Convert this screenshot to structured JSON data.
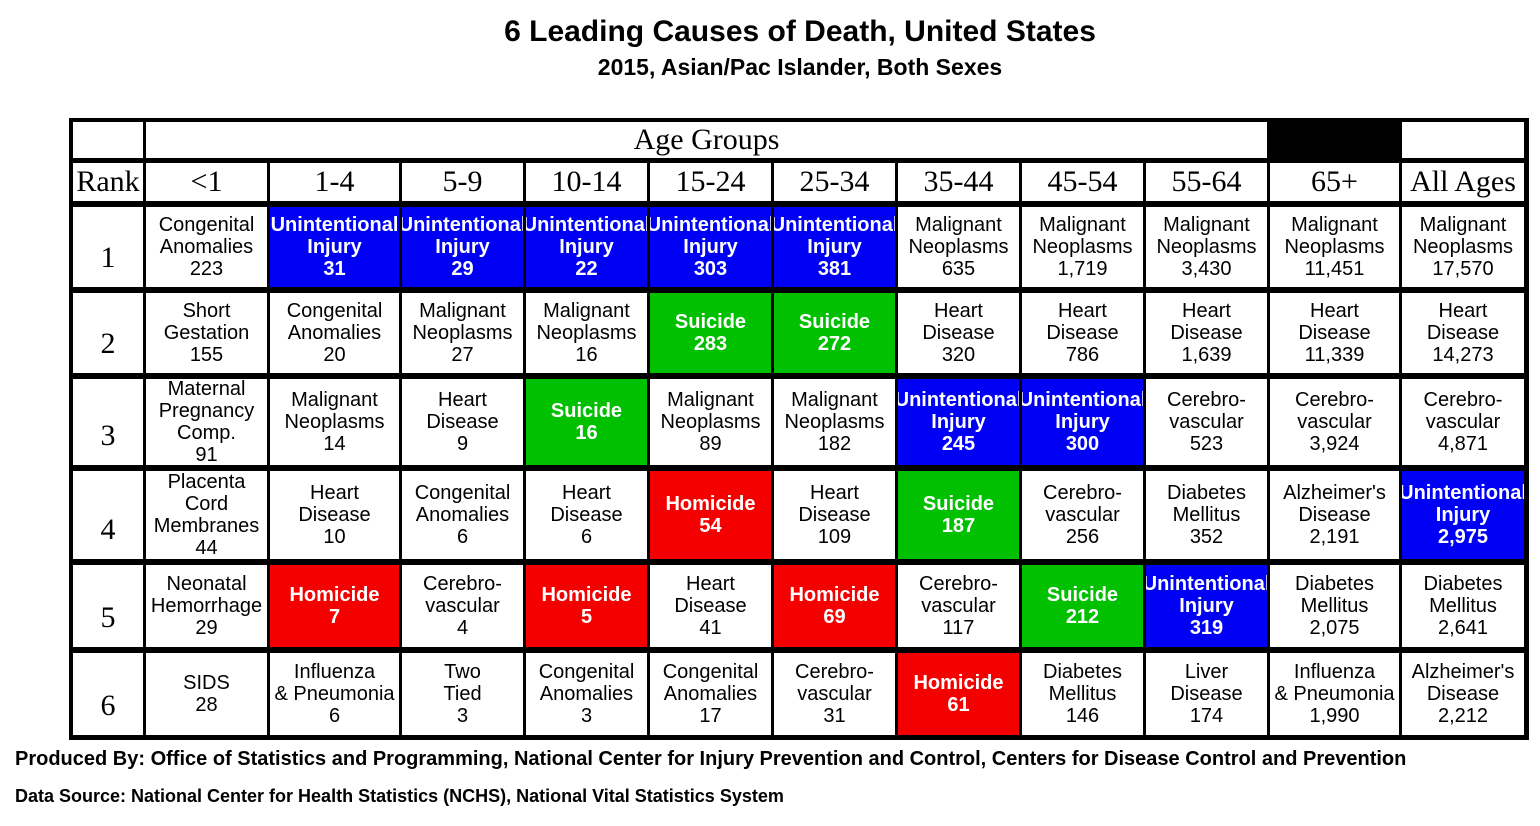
{
  "colors": {
    "unintentional_injury": "#0000f5",
    "suicide": "#00c000",
    "homicide": "#f50000",
    "default": "#ffffff"
  },
  "chart_data": {
    "type": "table",
    "title": "6 Leading Causes of Death, United States",
    "subtitle": "2015, Asian/Pac Islander, Both Sexes",
    "group_header": "Age Groups",
    "rank_header": "Rank",
    "age_groups": [
      "<1",
      "1-4",
      "5-9",
      "10-14",
      "15-24",
      "25-34",
      "35-44",
      "45-54",
      "55-64",
      "65+",
      "All Ages"
    ],
    "ranks": [
      "1",
      "2",
      "3",
      "4",
      "5",
      "6"
    ],
    "rows": [
      [
        {
          "cause": [
            "Congenital",
            "Anomalies"
          ],
          "count": "223",
          "color": "default"
        },
        {
          "cause": [
            "Unintentional",
            "Injury"
          ],
          "count": "31",
          "color": "unintentional_injury"
        },
        {
          "cause": [
            "Unintentional",
            "Injury"
          ],
          "count": "29",
          "color": "unintentional_injury"
        },
        {
          "cause": [
            "Unintentional",
            "Injury"
          ],
          "count": "22",
          "color": "unintentional_injury"
        },
        {
          "cause": [
            "Unintentional",
            "Injury"
          ],
          "count": "303",
          "color": "unintentional_injury"
        },
        {
          "cause": [
            "Unintentional",
            "Injury"
          ],
          "count": "381",
          "color": "unintentional_injury"
        },
        {
          "cause": [
            "Malignant",
            "Neoplasms"
          ],
          "count": "635",
          "color": "default"
        },
        {
          "cause": [
            "Malignant",
            "Neoplasms"
          ],
          "count": "1,719",
          "color": "default"
        },
        {
          "cause": [
            "Malignant",
            "Neoplasms"
          ],
          "count": "3,430",
          "color": "default"
        },
        {
          "cause": [
            "Malignant",
            "Neoplasms"
          ],
          "count": "11,451",
          "color": "default"
        },
        {
          "cause": [
            "Malignant",
            "Neoplasms"
          ],
          "count": "17,570",
          "color": "default"
        }
      ],
      [
        {
          "cause": [
            "Short",
            "Gestation"
          ],
          "count": "155",
          "color": "default"
        },
        {
          "cause": [
            "Congenital",
            "Anomalies"
          ],
          "count": "20",
          "color": "default"
        },
        {
          "cause": [
            "Malignant",
            "Neoplasms"
          ],
          "count": "27",
          "color": "default"
        },
        {
          "cause": [
            "Malignant",
            "Neoplasms"
          ],
          "count": "16",
          "color": "default"
        },
        {
          "cause": [
            "Suicide"
          ],
          "count": "283",
          "color": "suicide"
        },
        {
          "cause": [
            "Suicide"
          ],
          "count": "272",
          "color": "suicide"
        },
        {
          "cause": [
            "Heart",
            "Disease"
          ],
          "count": "320",
          "color": "default"
        },
        {
          "cause": [
            "Heart",
            "Disease"
          ],
          "count": "786",
          "color": "default"
        },
        {
          "cause": [
            "Heart",
            "Disease"
          ],
          "count": "1,639",
          "color": "default"
        },
        {
          "cause": [
            "Heart",
            "Disease"
          ],
          "count": "11,339",
          "color": "default"
        },
        {
          "cause": [
            "Heart",
            "Disease"
          ],
          "count": "14,273",
          "color": "default"
        }
      ],
      [
        {
          "cause": [
            "Maternal",
            "Pregnancy",
            "Comp."
          ],
          "count": "91",
          "color": "default"
        },
        {
          "cause": [
            "Malignant",
            "Neoplasms"
          ],
          "count": "14",
          "color": "default"
        },
        {
          "cause": [
            "Heart",
            "Disease"
          ],
          "count": "9",
          "color": "default"
        },
        {
          "cause": [
            "Suicide"
          ],
          "count": "16",
          "color": "suicide"
        },
        {
          "cause": [
            "Malignant",
            "Neoplasms"
          ],
          "count": "89",
          "color": "default"
        },
        {
          "cause": [
            "Malignant",
            "Neoplasms"
          ],
          "count": "182",
          "color": "default"
        },
        {
          "cause": [
            "Unintentional",
            "Injury"
          ],
          "count": "245",
          "color": "unintentional_injury"
        },
        {
          "cause": [
            "Unintentional",
            "Injury"
          ],
          "count": "300",
          "color": "unintentional_injury"
        },
        {
          "cause": [
            "Cerebro-",
            "vascular"
          ],
          "count": "523",
          "color": "default"
        },
        {
          "cause": [
            "Cerebro-",
            "vascular"
          ],
          "count": "3,924",
          "color": "default"
        },
        {
          "cause": [
            "Cerebro-",
            "vascular"
          ],
          "count": "4,871",
          "color": "default"
        }
      ],
      [
        {
          "cause": [
            "Placenta",
            "Cord",
            "Membranes"
          ],
          "count": "44",
          "color": "default"
        },
        {
          "cause": [
            "Heart",
            "Disease"
          ],
          "count": "10",
          "color": "default"
        },
        {
          "cause": [
            "Congenital",
            "Anomalies"
          ],
          "count": "6",
          "color": "default"
        },
        {
          "cause": [
            "Heart",
            "Disease"
          ],
          "count": "6",
          "color": "default"
        },
        {
          "cause": [
            "Homicide"
          ],
          "count": "54",
          "color": "homicide"
        },
        {
          "cause": [
            "Heart",
            "Disease"
          ],
          "count": "109",
          "color": "default"
        },
        {
          "cause": [
            "Suicide"
          ],
          "count": "187",
          "color": "suicide"
        },
        {
          "cause": [
            "Cerebro-",
            "vascular"
          ],
          "count": "256",
          "color": "default"
        },
        {
          "cause": [
            "Diabetes",
            "Mellitus"
          ],
          "count": "352",
          "color": "default"
        },
        {
          "cause": [
            "Alzheimer's",
            "Disease"
          ],
          "count": "2,191",
          "color": "default"
        },
        {
          "cause": [
            "Unintentional",
            "Injury"
          ],
          "count": "2,975",
          "color": "unintentional_injury"
        }
      ],
      [
        {
          "cause": [
            "Neonatal",
            "Hemorrhage"
          ],
          "count": "29",
          "color": "default"
        },
        {
          "cause": [
            "Homicide"
          ],
          "count": "7",
          "color": "homicide"
        },
        {
          "cause": [
            "Cerebro-",
            "vascular"
          ],
          "count": "4",
          "color": "default"
        },
        {
          "cause": [
            "Homicide"
          ],
          "count": "5",
          "color": "homicide"
        },
        {
          "cause": [
            "Heart",
            "Disease"
          ],
          "count": "41",
          "color": "default"
        },
        {
          "cause": [
            "Homicide"
          ],
          "count": "69",
          "color": "homicide"
        },
        {
          "cause": [
            "Cerebro-",
            "vascular"
          ],
          "count": "117",
          "color": "default"
        },
        {
          "cause": [
            "Suicide"
          ],
          "count": "212",
          "color": "suicide"
        },
        {
          "cause": [
            "Unintentional",
            "Injury"
          ],
          "count": "319",
          "color": "unintentional_injury"
        },
        {
          "cause": [
            "Diabetes",
            "Mellitus"
          ],
          "count": "2,075",
          "color": "default"
        },
        {
          "cause": [
            "Diabetes",
            "Mellitus"
          ],
          "count": "2,641",
          "color": "default"
        }
      ],
      [
        {
          "cause": [
            "SIDS"
          ],
          "count": "28",
          "color": "default"
        },
        {
          "cause": [
            "Influenza",
            "& Pneumonia"
          ],
          "count": "6",
          "color": "default"
        },
        {
          "cause": [
            "Two",
            "Tied"
          ],
          "count": "3",
          "color": "default"
        },
        {
          "cause": [
            "Congenital",
            "Anomalies"
          ],
          "count": "3",
          "color": "default"
        },
        {
          "cause": [
            "Congenital",
            "Anomalies"
          ],
          "count": "17",
          "color": "default"
        },
        {
          "cause": [
            "Cerebro-",
            "vascular"
          ],
          "count": "31",
          "color": "default"
        },
        {
          "cause": [
            "Homicide"
          ],
          "count": "61",
          "color": "homicide"
        },
        {
          "cause": [
            "Diabetes",
            "Mellitus"
          ],
          "count": "146",
          "color": "default"
        },
        {
          "cause": [
            "Liver",
            "Disease"
          ],
          "count": "174",
          "color": "default"
        },
        {
          "cause": [
            "Influenza",
            "& Pneumonia"
          ],
          "count": "1,990",
          "color": "default"
        },
        {
          "cause": [
            "Alzheimer's",
            "Disease"
          ],
          "count": "2,212",
          "color": "default"
        }
      ]
    ]
  },
  "footer": {
    "produced_by": "Produced By: Office of Statistics and Programming, National Center for Injury Prevention and Control, Centers for Disease Control and Prevention",
    "data_source": "Data Source: National Center for Health Statistics (NCHS), National Vital Statistics System"
  }
}
